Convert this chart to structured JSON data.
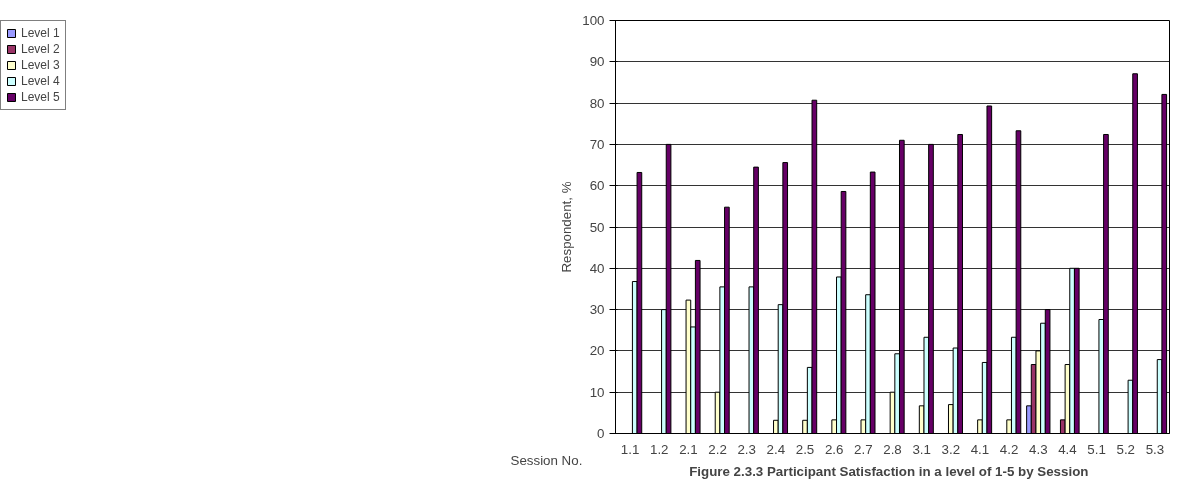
{
  "chart_data": {
    "type": "bar",
    "title": "Figure 2.3.3   Participant Satisfaction in a level of 1-5 by Session",
    "xlabel": "Session No.",
    "ylabel": "Respondent, %",
    "categories": [
      "1.1",
      "1.2",
      "2.1",
      "2.2",
      "2.3",
      "2.4",
      "2.5",
      "2.6",
      "2.7",
      "2.8",
      "3.1",
      "3.2",
      "4.1",
      "4.2",
      "4.3",
      "4.4",
      "5.1",
      "5.2",
      "5.3"
    ],
    "series": [
      {
        "name": "Level 1",
        "color": "#9999ff",
        "values": [
          null,
          null,
          null,
          null,
          null,
          null,
          null,
          null,
          null,
          null,
          null,
          null,
          null,
          null,
          6.7,
          null,
          null,
          null,
          null
        ]
      },
      {
        "name": "Level 2",
        "color": "#993366",
        "values": [
          null,
          null,
          null,
          null,
          null,
          null,
          null,
          null,
          null,
          null,
          null,
          null,
          null,
          null,
          16.7,
          3.3,
          null,
          null,
          null
        ]
      },
      {
        "name": "Level 3",
        "color": "#ffffcc",
        "values": [
          null,
          null,
          32.3,
          10,
          null,
          3.2,
          3.2,
          3.3,
          3.3,
          10,
          6.7,
          7,
          3.3,
          3.3,
          20,
          16.7,
          null,
          null,
          null
        ]
      },
      {
        "name": "Level 4",
        "color": "#ccffff",
        "values": [
          36.8,
          30,
          25.8,
          35.5,
          35.5,
          31.2,
          16,
          37.9,
          33.6,
          19.3,
          23.3,
          20.7,
          17.2,
          23.3,
          26.7,
          40,
          27.6,
          12.9,
          17.9
        ]
      },
      {
        "name": "Level 5",
        "color": "#660066",
        "values": [
          63.2,
          70,
          41.9,
          54.8,
          64.5,
          65.6,
          80.7,
          58.6,
          63.3,
          71,
          70,
          72.4,
          79.3,
          73.3,
          30,
          40,
          72.4,
          87.1,
          82.1
        ]
      }
    ],
    "ylim": [
      0,
      100
    ],
    "yticks": [
      0,
      10,
      20,
      30,
      40,
      50,
      60,
      70,
      80,
      90,
      100
    ],
    "grid": "y",
    "legend": "top left"
  }
}
